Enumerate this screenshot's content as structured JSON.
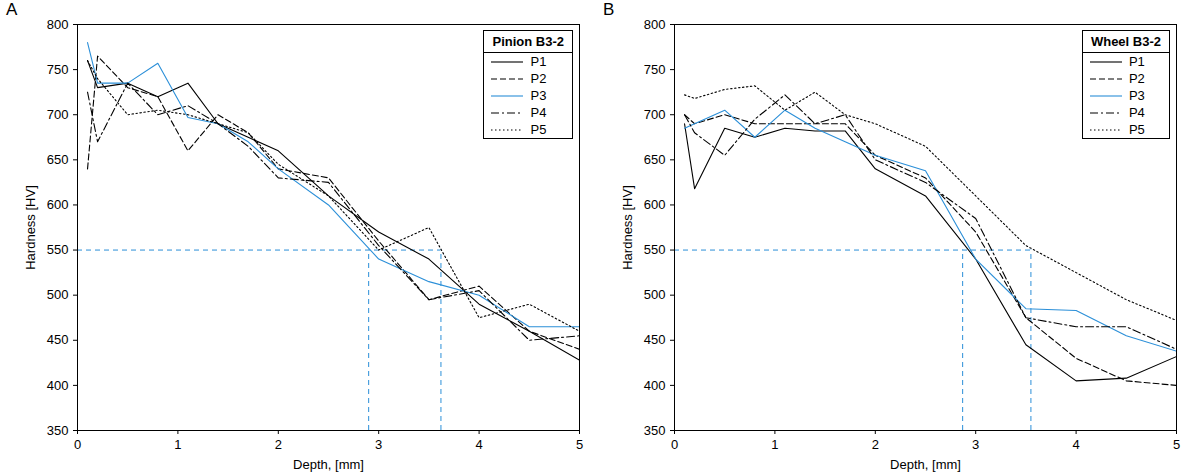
{
  "chart_data": [
    {
      "type": "line",
      "panel": "A",
      "legend_title": "Pinion B3-2",
      "xlabel": "Depth, [mm]",
      "ylabel": "Hardness [HV]",
      "xlim": [
        0,
        5
      ],
      "ylim": [
        350,
        800
      ],
      "xticks": [
        0,
        1,
        2,
        3,
        4,
        5
      ],
      "yticks": [
        350,
        400,
        450,
        500,
        550,
        600,
        650,
        700,
        750,
        800
      ],
      "grid": false,
      "legend": "top-right",
      "threshold": 550,
      "threshold_depths": [
        2.9,
        3.62
      ],
      "x": [
        0.1,
        0.2,
        0.5,
        0.8,
        1.1,
        1.4,
        1.7,
        2.0,
        2.5,
        3.0,
        3.5,
        4.0,
        4.5,
        5.0
      ],
      "series": [
        {
          "name": "P1",
          "color": "#000000",
          "line_style": "solid",
          "values": [
            760,
            730,
            735,
            720,
            735,
            690,
            675,
            660,
            610,
            570,
            540,
            490,
            460,
            428
          ]
        },
        {
          "name": "P2",
          "color": "#000000",
          "line_style": "dashed",
          "values": [
            640,
            765,
            730,
            720,
            660,
            700,
            680,
            640,
            630,
            560,
            495,
            510,
            460,
            440
          ]
        },
        {
          "name": "P3",
          "color": "#2b8fd8",
          "line_style": "solid",
          "values": [
            780,
            735,
            735,
            757,
            697,
            690,
            670,
            640,
            600,
            540,
            515,
            500,
            465,
            465
          ]
        },
        {
          "name": "P4",
          "color": "#000000",
          "line_style": "dashdot",
          "values": [
            725,
            670,
            735,
            700,
            710,
            690,
            665,
            630,
            625,
            555,
            495,
            505,
            450,
            455
          ]
        },
        {
          "name": "P5",
          "color": "#000000",
          "line_style": "dotted",
          "values": [
            760,
            740,
            700,
            705,
            700,
            690,
            680,
            645,
            610,
            550,
            575,
            475,
            490,
            460
          ]
        }
      ]
    },
    {
      "type": "line",
      "panel": "B",
      "legend_title": "Wheel B3-2",
      "xlabel": "Depth, [mm]",
      "ylabel": "Hardness [HV]",
      "xlim": [
        0,
        5
      ],
      "ylim": [
        350,
        800
      ],
      "xticks": [
        0,
        1,
        2,
        3,
        4,
        5
      ],
      "yticks": [
        350,
        400,
        450,
        500,
        550,
        600,
        650,
        700,
        750,
        800
      ],
      "grid": false,
      "legend": "top-right",
      "threshold": 550,
      "threshold_depths": [
        2.87,
        3.55
      ],
      "x": [
        0.1,
        0.2,
        0.5,
        0.8,
        1.1,
        1.4,
        1.7,
        2.0,
        2.5,
        3.0,
        3.5,
        4.0,
        4.5,
        5.0
      ],
      "series": [
        {
          "name": "P1",
          "color": "#000000",
          "line_style": "solid",
          "values": [
            690,
            618,
            685,
            675,
            685,
            682,
            682,
            640,
            610,
            540,
            445,
            405,
            408,
            432
          ]
        },
        {
          "name": "P2",
          "color": "#000000",
          "line_style": "dashed",
          "values": [
            700,
            690,
            700,
            690,
            690,
            690,
            690,
            655,
            630,
            570,
            475,
            430,
            405,
            400
          ]
        },
        {
          "name": "P3",
          "color": "#2b8fd8",
          "line_style": "solid",
          "values": [
            685,
            690,
            705,
            675,
            705,
            685,
            670,
            655,
            638,
            540,
            485,
            483,
            455,
            438
          ]
        },
        {
          "name": "P4",
          "color": "#000000",
          "line_style": "dashdot",
          "values": [
            700,
            680,
            655,
            695,
            722,
            690,
            700,
            650,
            625,
            585,
            475,
            465,
            465,
            440
          ]
        },
        {
          "name": "P5",
          "color": "#000000",
          "line_style": "dotted",
          "values": [
            722,
            718,
            728,
            732,
            705,
            725,
            700,
            690,
            665,
            610,
            555,
            525,
            495,
            472
          ]
        }
      ]
    }
  ]
}
